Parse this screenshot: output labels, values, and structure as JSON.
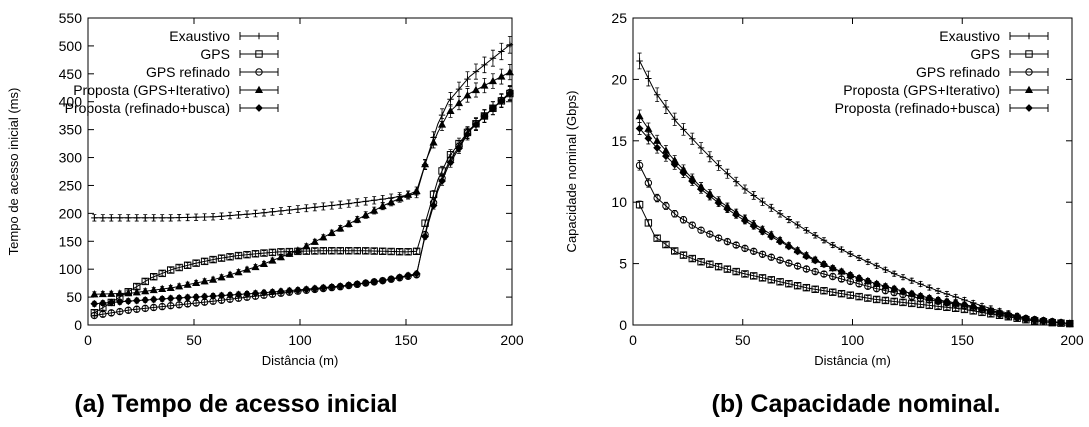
{
  "chart_data": [
    {
      "type": "line",
      "caption": "(a) Tempo de acesso inicial",
      "xlabel": "Distância (m)",
      "ylabel": "Tempo de acesso inicial (ms)",
      "xlim": [
        0,
        200
      ],
      "ylim": [
        0,
        550
      ],
      "xticks": [
        0,
        50,
        100,
        150,
        200
      ],
      "yticks": [
        0,
        50,
        100,
        150,
        200,
        250,
        300,
        350,
        400,
        450,
        500,
        550
      ],
      "grid": false,
      "legend_position": "top-left",
      "series": [
        {
          "name": "Exaustivo",
          "marker": "plus",
          "x": [
            3,
            20,
            40,
            60,
            80,
            100,
            120,
            140,
            155,
            160,
            165,
            170,
            180,
            190,
            200
          ],
          "y": [
            192,
            192,
            192,
            194,
            200,
            208,
            216,
            226,
            235,
            300,
            360,
            400,
            445,
            475,
            505
          ]
        },
        {
          "name": "GPS",
          "marker": "square",
          "x": [
            3,
            10,
            20,
            30,
            40,
            50,
            60,
            70,
            80,
            90,
            100,
            110,
            120,
            130,
            140,
            150,
            155,
            160,
            165,
            170,
            180,
            190,
            200
          ],
          "y": [
            22,
            38,
            62,
            85,
            100,
            110,
            118,
            124,
            128,
            131,
            132,
            133,
            133,
            133,
            132,
            131,
            132,
            195,
            260,
            300,
            350,
            385,
            418
          ]
        },
        {
          "name": "GPS refinado",
          "marker": "circle",
          "x": [
            3,
            20,
            40,
            60,
            80,
            100,
            120,
            140,
            155,
            160,
            165,
            170,
            180,
            190,
            200
          ],
          "y": [
            17,
            27,
            35,
            43,
            52,
            61,
            69,
            80,
            90,
            180,
            245,
            290,
            350,
            385,
            420
          ]
        },
        {
          "name": "Proposta (GPS+Iterativo)",
          "marker": "triangle",
          "x": [
            3,
            20,
            40,
            60,
            80,
            100,
            120,
            140,
            155,
            160,
            165,
            170,
            180,
            190,
            200
          ],
          "y": [
            55,
            57,
            67,
            82,
            105,
            135,
            175,
            215,
            240,
            300,
            345,
            380,
            415,
            435,
            455
          ]
        },
        {
          "name": "Proposta (refinado+busca)",
          "marker": "diamond",
          "x": [
            3,
            20,
            40,
            60,
            80,
            100,
            120,
            140,
            155,
            160,
            165,
            170,
            180,
            190,
            200
          ],
          "y": [
            38,
            43,
            48,
            52,
            57,
            63,
            70,
            80,
            92,
            175,
            240,
            285,
            348,
            385,
            418
          ]
        }
      ]
    },
    {
      "type": "line",
      "caption": "(b) Capacidade nominal.",
      "xlabel": "Distância (m)",
      "ylabel": "Capacidade nominal (Gbps)",
      "xlim": [
        0,
        200
      ],
      "ylim": [
        0,
        25
      ],
      "xticks": [
        0,
        50,
        100,
        150,
        200
      ],
      "yticks": [
        0,
        5,
        10,
        15,
        20,
        25
      ],
      "grid": false,
      "legend_position": "top-right",
      "series": [
        {
          "name": "Exaustivo",
          "marker": "plus",
          "x": [
            3,
            10,
            20,
            30,
            40,
            50,
            60,
            70,
            80,
            90,
            100,
            110,
            120,
            130,
            140,
            150,
            160,
            170,
            180,
            190,
            200
          ],
          "y": [
            21.5,
            19.0,
            16.5,
            14.6,
            12.8,
            11.2,
            9.9,
            8.7,
            7.6,
            6.6,
            5.7,
            4.9,
            4.1,
            3.4,
            2.7,
            2.1,
            1.5,
            1.0,
            0.5,
            0.3,
            0.1
          ]
        },
        {
          "name": "GPS",
          "marker": "square",
          "x": [
            3,
            10,
            20,
            30,
            40,
            50,
            60,
            70,
            80,
            90,
            100,
            110,
            120,
            130,
            140,
            150,
            160,
            170,
            180,
            190,
            200
          ],
          "y": [
            9.8,
            7.2,
            5.9,
            5.2,
            4.7,
            4.2,
            3.8,
            3.4,
            3.0,
            2.7,
            2.4,
            2.1,
            1.9,
            1.7,
            1.5,
            1.3,
            1.0,
            0.7,
            0.4,
            0.2,
            0.1
          ]
        },
        {
          "name": "GPS refinado",
          "marker": "circle",
          "x": [
            3,
            10,
            20,
            30,
            40,
            50,
            60,
            70,
            80,
            90,
            100,
            110,
            120,
            130,
            140,
            150,
            160,
            170,
            180,
            190,
            200
          ],
          "y": [
            13.0,
            10.5,
            8.9,
            7.8,
            7.0,
            6.3,
            5.7,
            5.1,
            4.5,
            4.0,
            3.5,
            3.0,
            2.6,
            2.2,
            1.9,
            1.6,
            1.2,
            0.8,
            0.5,
            0.3,
            0.1
          ]
        },
        {
          "name": "Proposta (GPS+Iterativo)",
          "marker": "triangle",
          "x": [
            3,
            10,
            20,
            30,
            40,
            50,
            60,
            70,
            80,
            90,
            100,
            110,
            120,
            130,
            140,
            150,
            160,
            170,
            180,
            190,
            200
          ],
          "y": [
            17.0,
            15.2,
            13.2,
            11.4,
            10.0,
            8.8,
            7.7,
            6.6,
            5.6,
            4.7,
            4.0,
            3.4,
            2.9,
            2.4,
            2.0,
            1.7,
            1.3,
            0.9,
            0.5,
            0.3,
            0.1
          ]
        },
        {
          "name": "Proposta (refinado+busca)",
          "marker": "diamond",
          "x": [
            3,
            10,
            20,
            30,
            40,
            50,
            60,
            70,
            80,
            90,
            100,
            110,
            120,
            130,
            140,
            150,
            160,
            170,
            180,
            190,
            200
          ],
          "y": [
            16.0,
            14.6,
            12.9,
            11.2,
            9.8,
            8.6,
            7.5,
            6.5,
            5.5,
            4.7,
            4.0,
            3.4,
            2.9,
            2.4,
            2.0,
            1.7,
            1.3,
            0.9,
            0.5,
            0.3,
            0.1
          ]
        }
      ]
    }
  ]
}
